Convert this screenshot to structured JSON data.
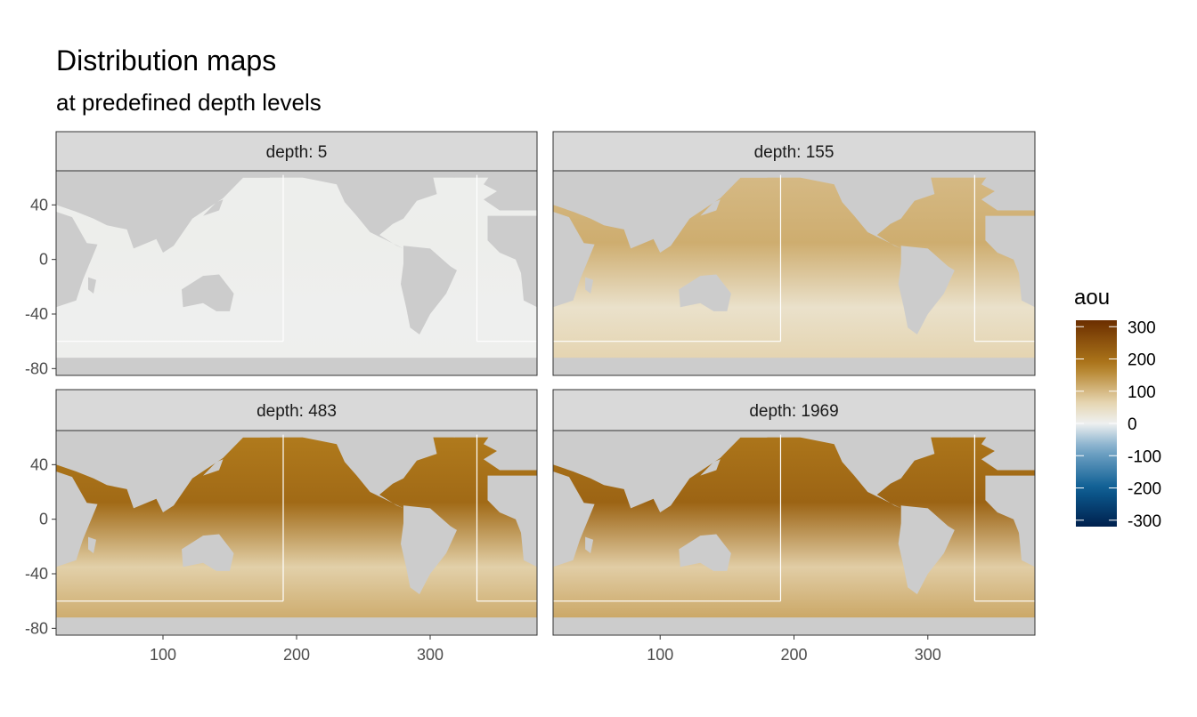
{
  "chart_data": {
    "type": "heatmap",
    "title": "Distribution maps",
    "subtitle": "at predefined depth levels",
    "xlabel": "",
    "ylabel": "",
    "x_ticks": [
      100,
      200,
      300
    ],
    "y_ticks": [
      40,
      0,
      -40,
      -80
    ],
    "xlim": [
      20,
      380
    ],
    "ylim": [
      -85,
      65
    ],
    "facets": [
      {
        "label": "depth: 5",
        "depth": 5,
        "typical_aou": 5
      },
      {
        "label": "depth: 155",
        "depth": 155,
        "typical_aou": 110
      },
      {
        "label": "depth: 483",
        "depth": 483,
        "typical_aou": 200
      },
      {
        "label": "depth: 1969",
        "depth": 1969,
        "typical_aou": 210
      }
    ],
    "legend": {
      "title": "aou",
      "placement": "right",
      "breaks": [
        300,
        200,
        100,
        0,
        -100,
        -200,
        -300
      ],
      "limits": [
        -320,
        320
      ]
    },
    "colors": {
      "panel_background": "#cccccc",
      "strip_background": "#d9d9d9",
      "high": "#6b2e00",
      "mid_high": "#b07a1c",
      "low_pos": "#e7d8b6",
      "zero": "#eef0f0",
      "low_neg": "#78a8c8",
      "neg": "#0d5e94",
      "very_neg": "#00204d"
    }
  }
}
